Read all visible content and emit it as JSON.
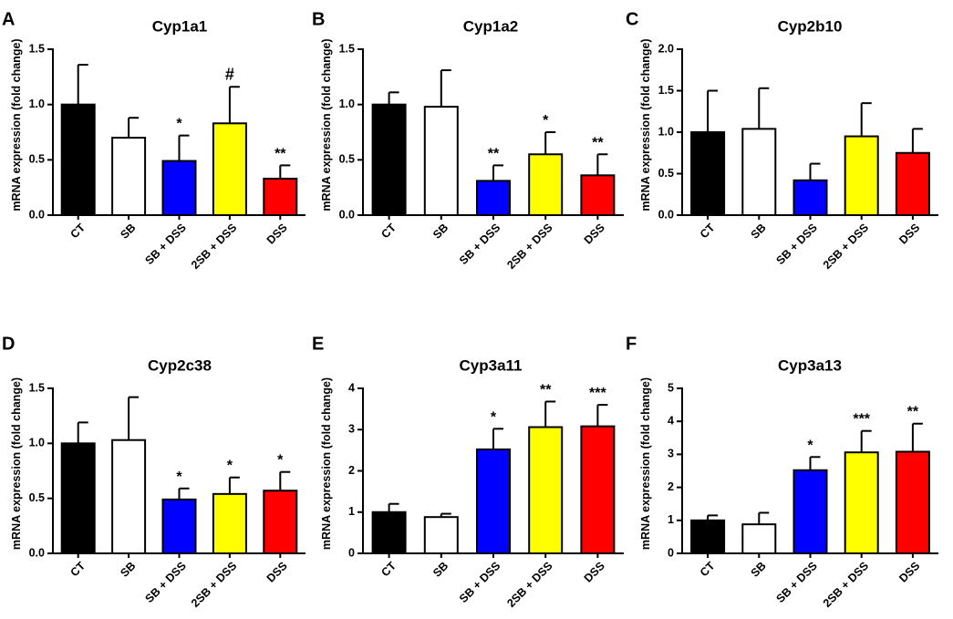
{
  "figure": {
    "ylabel": "mRNA expression (fold change)",
    "categories": [
      "CT",
      "SB",
      "SB + DSS",
      "2SB + DSS",
      "DSS"
    ],
    "colors": {
      "CT": "#000000",
      "SB": "#ffffff",
      "SB + DSS": "#0000ff",
      "2SB + DSS": "#ffff00",
      "DSS": "#ff0000",
      "axis": "#000000"
    }
  },
  "chart_data": [
    {
      "panel": "A",
      "title": "Cyp1a1",
      "type": "bar",
      "ylabel": "mRNA expression (fold change)",
      "categories": [
        "CT",
        "SB",
        "SB + DSS",
        "2SB + DSS",
        "DSS"
      ],
      "values": [
        1.0,
        0.7,
        0.49,
        0.83,
        0.33
      ],
      "errors": [
        0.36,
        0.18,
        0.23,
        0.33,
        0.12
      ],
      "annotations": [
        "",
        "",
        "*",
        "#",
        "**"
      ],
      "ylim": [
        0,
        1.5
      ],
      "yticks": [
        0,
        0.5,
        1.0,
        1.5
      ],
      "ytick_labels": [
        "0.0",
        "0.5",
        "1.0",
        "1.5"
      ]
    },
    {
      "panel": "B",
      "title": "Cyp1a2",
      "type": "bar",
      "ylabel": "mRNA expression (fold change)",
      "categories": [
        "CT",
        "SB",
        "SB + DSS",
        "2SB + DSS",
        "DSS"
      ],
      "values": [
        1.0,
        0.98,
        0.31,
        0.55,
        0.36
      ],
      "errors": [
        0.11,
        0.33,
        0.14,
        0.2,
        0.19
      ],
      "annotations": [
        "",
        "",
        "**",
        "*",
        "**"
      ],
      "ylim": [
        0,
        1.5
      ],
      "yticks": [
        0,
        0.5,
        1.0,
        1.5
      ],
      "ytick_labels": [
        "0.0",
        "0.5",
        "1.0",
        "1.5"
      ]
    },
    {
      "panel": "C",
      "title": "Cyp2b10",
      "type": "bar",
      "ylabel": "mRNA expression (fold change)",
      "categories": [
        "CT",
        "SB",
        "SB + DSS",
        "2SB + DSS",
        "DSS"
      ],
      "values": [
        1.0,
        1.04,
        0.42,
        0.95,
        0.75
      ],
      "errors": [
        0.5,
        0.49,
        0.2,
        0.4,
        0.29
      ],
      "annotations": [
        "",
        "",
        "",
        "",
        ""
      ],
      "ylim": [
        0,
        2.0
      ],
      "yticks": [
        0,
        0.5,
        1.0,
        1.5,
        2.0
      ],
      "ytick_labels": [
        "0.0",
        "0.5",
        "1.0",
        "1.5",
        "2.0"
      ]
    },
    {
      "panel": "D",
      "title": "Cyp2c38",
      "type": "bar",
      "ylabel": "mRNA expression (fold change)",
      "categories": [
        "CT",
        "SB",
        "SB + DSS",
        "2SB + DSS",
        "DSS"
      ],
      "values": [
        1.0,
        1.03,
        0.49,
        0.54,
        0.57
      ],
      "errors": [
        0.19,
        0.39,
        0.1,
        0.15,
        0.17
      ],
      "annotations": [
        "",
        "",
        "*",
        "*",
        "*"
      ],
      "ylim": [
        0,
        1.5
      ],
      "yticks": [
        0,
        0.5,
        1.0,
        1.5
      ],
      "ytick_labels": [
        "0.0",
        "0.5",
        "1.0",
        "1.5"
      ]
    },
    {
      "panel": "E",
      "title": "Cyp3a11",
      "type": "bar",
      "ylabel": "mRNA expression (fold change)",
      "categories": [
        "CT",
        "SB",
        "SB + DSS",
        "2SB + DSS",
        "DSS"
      ],
      "values": [
        1.0,
        0.88,
        2.52,
        3.06,
        3.08
      ],
      "errors": [
        0.2,
        0.08,
        0.5,
        0.62,
        0.52
      ],
      "annotations": [
        "",
        "",
        "*",
        "**",
        "***"
      ],
      "ylim": [
        0,
        4
      ],
      "yticks": [
        0,
        1,
        2,
        3,
        4
      ],
      "ytick_labels": [
        "0",
        "1",
        "2",
        "3",
        "4"
      ]
    },
    {
      "panel": "F",
      "title": "Cyp3a13",
      "type": "bar",
      "ylabel": "mRNA expression (fold change)",
      "categories": [
        "CT",
        "SB",
        "SB + DSS",
        "2SB + DSS",
        "DSS"
      ],
      "values": [
        1.0,
        0.88,
        2.52,
        3.06,
        3.08
      ],
      "errors": [
        0.15,
        0.35,
        0.4,
        0.65,
        0.85
      ],
      "annotations": [
        "",
        "",
        "*",
        "***",
        "**"
      ],
      "ylim": [
        0,
        5
      ],
      "yticks": [
        0,
        1,
        2,
        3,
        4,
        5
      ],
      "ytick_labels": [
        "0",
        "1",
        "2",
        "3",
        "4",
        "5"
      ]
    }
  ]
}
